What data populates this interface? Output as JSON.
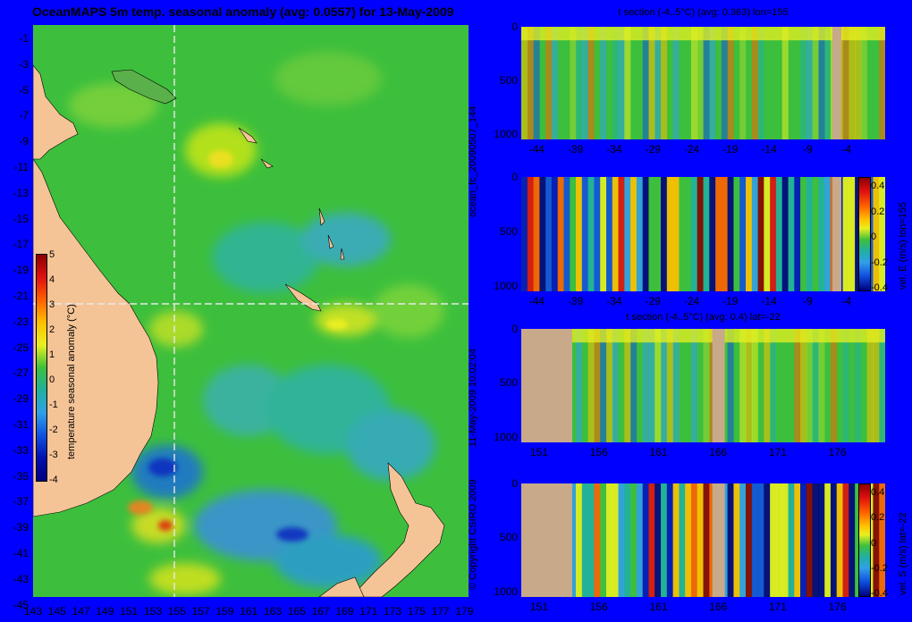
{
  "colors": {
    "background": "#0000ff",
    "land": "#f5c496",
    "section_land": "#c8a98a",
    "ocean_base": "#3dbf3d",
    "anomaly_cold": "#000080",
    "anomaly_warm": "#8b0000"
  },
  "main_map": {
    "title": "OceanMAPS 5m temp. seasonal anomaly (avg: 0.0557) for 13-May-2009",
    "lat_ticks": [
      "-1",
      "-3",
      "-5",
      "-7",
      "-9",
      "-11",
      "-13",
      "-15",
      "-17",
      "-19",
      "-21",
      "-23",
      "-25",
      "-27",
      "-29",
      "-31",
      "-33",
      "-35",
      "-37",
      "-39",
      "-41",
      "-43",
      "-45"
    ],
    "lon_ticks": [
      "143",
      "145",
      "147",
      "149",
      "151",
      "153",
      "155",
      "157",
      "159",
      "161",
      "163",
      "165",
      "167",
      "169",
      "171",
      "173",
      "175",
      "177",
      "179"
    ],
    "colorbar": {
      "label": "temperature seasonal anomaly (°C)",
      "ticks": [
        "5",
        "4",
        "3",
        "2",
        "1",
        "0",
        "-1",
        "-2",
        "-3",
        "-4"
      ]
    }
  },
  "side_labels": {
    "forecast_id": "ocean_fc_20090507_144",
    "run_time": "11-May-2009 10:02:04",
    "copyright": "© Copyright CSIRO 2009"
  },
  "chart_data": [
    {
      "type": "heatmap",
      "title": "t section (-4..5°C) (avg: 0.363) lon=155",
      "x_ticks": [
        "-44",
        "-39",
        "-34",
        "-29",
        "-24",
        "-19",
        "-14",
        "-9",
        "-4"
      ],
      "y_ticks": [
        "0",
        "500",
        "1000"
      ],
      "xlim": [
        -46,
        1
      ],
      "ylim": [
        1050,
        0
      ]
    },
    {
      "type": "heatmap",
      "title": "",
      "x_ticks": [
        "-44",
        "-39",
        "-34",
        "-29",
        "-24",
        "-19",
        "-14",
        "-9",
        "-4"
      ],
      "y_ticks": [
        "0",
        "500",
        "1000"
      ],
      "colorbar_label": "vel. E (m/s) lon=155",
      "colorbar_ticks": [
        "0.4",
        "0.2",
        "0",
        "-0.2",
        "-0.4"
      ],
      "xlim": [
        -46,
        1
      ],
      "ylim": [
        1050,
        0
      ]
    },
    {
      "type": "heatmap",
      "title": "t section (-4..5°C) (avg: 0.4) lat=-22",
      "x_ticks": [
        "151",
        "156",
        "161",
        "166",
        "171",
        "176"
      ],
      "y_ticks": [
        "0",
        "500",
        "1000"
      ],
      "xlim": [
        149.5,
        180
      ],
      "ylim": [
        1050,
        0
      ]
    },
    {
      "type": "heatmap",
      "title": "",
      "x_ticks": [
        "151",
        "156",
        "161",
        "166",
        "171",
        "176"
      ],
      "y_ticks": [
        "0",
        "500",
        "1000"
      ],
      "colorbar_label": "vel. S (m/s) lat=-22",
      "colorbar_ticks": [
        "0.4",
        "0.2",
        "0",
        "-0.2",
        "-0.4"
      ],
      "xlim": [
        149.5,
        180
      ],
      "ylim": [
        1050,
        0
      ]
    }
  ]
}
